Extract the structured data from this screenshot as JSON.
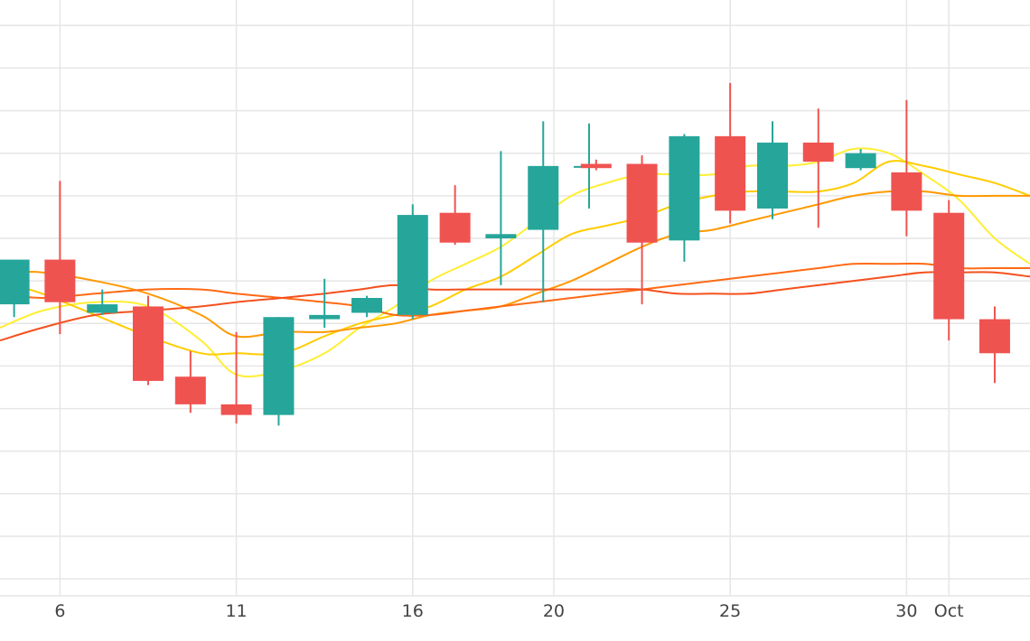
{
  "chart_data": {
    "type": "candlestick",
    "x_tick_labels": [
      {
        "day": 6,
        "label": "6"
      },
      {
        "day": 11,
        "label": "11"
      },
      {
        "day": 16,
        "label": "16"
      },
      {
        "day": 20,
        "label": "20"
      },
      {
        "day": 25,
        "label": "25"
      },
      {
        "day": 30,
        "label": "30"
      },
      {
        "day": 31.2,
        "label": "Oct"
      }
    ],
    "xlim": [
      4.3,
      33.5
    ],
    "ylim": [
      100,
      240
    ],
    "y_gridlines": [
      104,
      114,
      124,
      134,
      144,
      154,
      164,
      174,
      184,
      194,
      204,
      214,
      224,
      234
    ],
    "x_gridlines": [
      6,
      11,
      16,
      20,
      25,
      30,
      31.2
    ],
    "grid": true,
    "legend": "none",
    "up_color": "#26a69a",
    "down_color": "#ef5350",
    "candles": [
      {
        "x": 4.7,
        "open": 168.5,
        "high": 178.5,
        "low": 165.5,
        "close": 179.0
      },
      {
        "x": 6.0,
        "open": 179.0,
        "high": 197.5,
        "low": 161.5,
        "close": 169.0
      },
      {
        "x": 7.2,
        "open": 166.5,
        "high": 172.0,
        "low": 166.0,
        "close": 168.5
      },
      {
        "x": 8.5,
        "open": 168.0,
        "high": 170.5,
        "low": 149.5,
        "close": 150.5
      },
      {
        "x": 9.7,
        "open": 151.5,
        "high": 157.5,
        "low": 143.0,
        "close": 145.0
      },
      {
        "x": 11.0,
        "open": 145.0,
        "high": 162.0,
        "low": 140.5,
        "close": 142.5
      },
      {
        "x": 12.2,
        "open": 142.5,
        "high": 165.5,
        "low": 140.0,
        "close": 165.5
      },
      {
        "x": 13.5,
        "open": 165.0,
        "high": 174.5,
        "low": 163.0,
        "close": 166.0
      },
      {
        "x": 14.7,
        "open": 166.5,
        "high": 170.5,
        "low": 165.5,
        "close": 170.0
      },
      {
        "x": 16.0,
        "open": 166.0,
        "high": 192.0,
        "low": 165.0,
        "close": 189.5
      },
      {
        "x": 17.2,
        "open": 190.0,
        "high": 196.5,
        "low": 182.5,
        "close": 183.0
      },
      {
        "x": 18.5,
        "open": 184.0,
        "high": 204.5,
        "low": 173.0,
        "close": 185.0
      },
      {
        "x": 19.7,
        "open": 186.0,
        "high": 211.5,
        "low": 169.0,
        "close": 201.0
      },
      {
        "x": 21.0,
        "open": 201.0,
        "high": 211.0,
        "low": 191.0,
        "close": 201.0
      },
      {
        "x": 21.2,
        "open": 201.5,
        "high": 202.5,
        "low": 200.0,
        "close": 200.5
      },
      {
        "x": 22.5,
        "open": 201.5,
        "high": 203.5,
        "low": 168.5,
        "close": 183.0
      },
      {
        "x": 23.7,
        "open": 183.5,
        "high": 208.5,
        "low": 178.5,
        "close": 208.0
      },
      {
        "x": 25.0,
        "open": 208.0,
        "high": 220.5,
        "low": 187.5,
        "close": 190.5
      },
      {
        "x": 26.2,
        "open": 191.0,
        "high": 211.5,
        "low": 188.5,
        "close": 206.5
      },
      {
        "x": 27.5,
        "open": 206.5,
        "high": 214.5,
        "low": 186.5,
        "close": 202.0
      },
      {
        "x": 28.7,
        "open": 200.5,
        "high": 205.0,
        "low": 200.0,
        "close": 204.0
      },
      {
        "x": 30.0,
        "open": 199.5,
        "high": 216.5,
        "low": 184.5,
        "close": 190.5
      },
      {
        "x": 31.2,
        "open": 190.0,
        "high": 193.0,
        "low": 160.0,
        "close": 165.0
      },
      {
        "x": 32.5,
        "open": 165.0,
        "high": 168.0,
        "low": 150.0,
        "close": 157.0
      }
    ],
    "series": [
      {
        "color": "#ffee33",
        "x": [
          4.3,
          5.5,
          7.0,
          8.5,
          10.0,
          11.0,
          12.3,
          13.5,
          14.5,
          15.5,
          16.5,
          17.5,
          18.5,
          19.5,
          20.5,
          21.5,
          22.5,
          23.5,
          24.5,
          25.5,
          26.5,
          27.5,
          28.5,
          29.5,
          30.5,
          31.5,
          32.5,
          33.5
        ],
        "y": [
          163,
          167,
          169,
          168,
          160,
          152,
          153,
          157,
          163,
          168,
          174,
          178,
          182,
          188,
          194,
          197,
          199,
          199,
          199,
          201,
          201,
          202,
          205,
          204,
          199,
          193,
          184,
          178
        ]
      },
      {
        "color": "#ffcc00",
        "x": [
          4.3,
          5.5,
          7.0,
          8.5,
          10.0,
          11.0,
          12.3,
          13.5,
          14.5,
          15.5,
          16.5,
          17.5,
          18.5,
          19.5,
          20.5,
          21.5,
          22.5,
          23.5,
          24.5,
          25.5,
          26.5,
          27.5,
          28.5,
          29.5,
          30.5,
          31.5,
          32.5,
          33.5
        ],
        "y": [
          174,
          171,
          166,
          161,
          157,
          157,
          157,
          161,
          164,
          166,
          168,
          172,
          175,
          180,
          185,
          187,
          189,
          192,
          194,
          195,
          195,
          195,
          197,
          202,
          201,
          199,
          197,
          194
        ]
      },
      {
        "color": "#ff9900",
        "x": [
          4.3,
          5.5,
          7.0,
          8.5,
          10.0,
          11.0,
          12.3,
          13.5,
          14.5,
          15.5,
          16.5,
          17.5,
          18.5,
          19.5,
          20.5,
          21.5,
          22.5,
          23.5,
          24.5,
          25.5,
          26.5,
          27.5,
          28.5,
          29.5,
          30.5,
          31.5,
          32.5,
          33.5
        ],
        "y": [
          176,
          176,
          174,
          171,
          166,
          161,
          162,
          162,
          163,
          164,
          166,
          167,
          168,
          171,
          174,
          178,
          182,
          185,
          186,
          188,
          190,
          192,
          194,
          195,
          195,
          194,
          194,
          194
        ]
      },
      {
        "color": "#ff6a14",
        "x": [
          4.3,
          5.5,
          7.0,
          8.5,
          10.0,
          11.0,
          12.3,
          13.5,
          14.5,
          15.5,
          16.5,
          17.5,
          18.5,
          19.5,
          20.5,
          21.5,
          22.5,
          23.5,
          24.5,
          25.5,
          26.5,
          27.5,
          28.5,
          29.5,
          30.5,
          31.5,
          32.5,
          33.5
        ],
        "y": [
          171,
          170,
          171,
          172,
          172,
          171,
          170,
          169,
          168,
          166,
          166,
          167,
          168,
          169,
          170,
          171,
          172,
          173,
          174,
          175,
          176,
          177,
          178,
          178,
          178,
          177,
          177,
          177
        ]
      },
      {
        "color": "#f4511e",
        "x": [
          4.3,
          5.5,
          7.0,
          8.5,
          10.0,
          11.0,
          12.3,
          13.5,
          14.5,
          15.5,
          16.5,
          17.5,
          18.5,
          19.5,
          20.5,
          21.5,
          22.5,
          23.5,
          24.5,
          25.5,
          26.5,
          27.5,
          28.5,
          29.5,
          30.5,
          31.5,
          32.5,
          33.5
        ],
        "y": [
          160,
          163,
          166,
          167,
          168,
          169,
          170,
          171,
          172,
          173,
          172,
          172,
          172,
          172,
          172,
          172,
          172,
          171,
          171,
          171,
          172,
          173,
          174,
          175,
          176,
          176,
          176,
          175
        ]
      }
    ]
  }
}
